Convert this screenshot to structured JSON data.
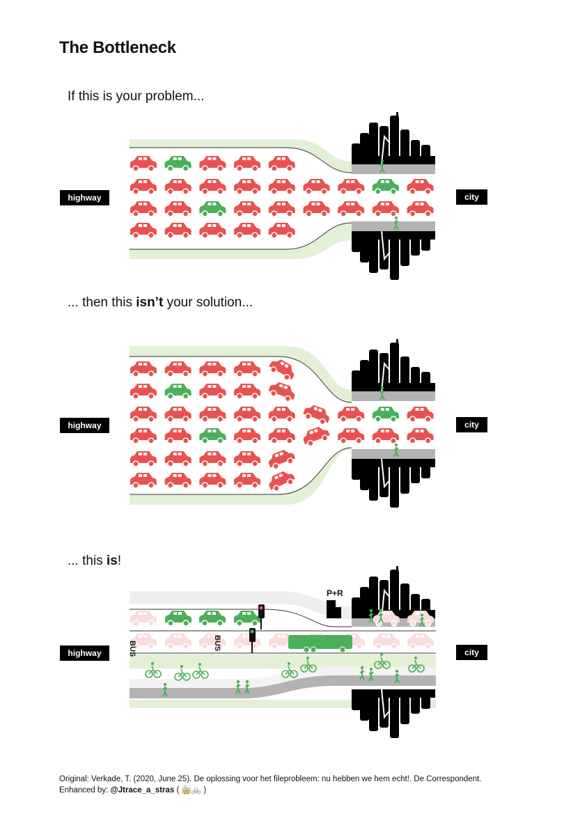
{
  "title": "The Bottleneck",
  "panels": [
    {
      "caption_pre": "If this is your problem...",
      "caption_bold": "",
      "caption_post": "",
      "left_label": "highway",
      "right_label": "city",
      "car_rows": [
        "rgrrr",
        "rrrrrrrgr",
        "rrgrrrrrr",
        "rrrrr"
      ]
    },
    {
      "caption_pre": "... then this ",
      "caption_bold": "isn’t",
      "caption_post": " your solution...",
      "left_label": "highway",
      "right_label": "city",
      "car_rows": [
        "rrrrr",
        "rgrrr",
        "rrrrrrrgr",
        "rrgrrrrrr",
        "rrrrr",
        "rrrrr"
      ]
    },
    {
      "caption_pre": "... this ",
      "caption_bold": "is",
      "caption_post": "!",
      "left_label": "highway",
      "right_label": "city",
      "bus_lane_labels": [
        "BUS",
        "BUS"
      ],
      "park_and_ride": "P+R"
    }
  ],
  "colors": {
    "car_red": "#e8524f",
    "car_green": "#4caf5a",
    "faded_red": "#f9dcdc",
    "road_gray": "#b3b3b3",
    "verge_green": "#e3f0d5",
    "city_black": "#000000"
  },
  "footer": {
    "line1": "Original: Verkade, T. (2020, June 25). De oplossing voor het fileprobleem: nu hebben we hem echt!. De Correspondent.",
    "line2_prefix": "Enhanced by: ",
    "line2_handle": "@Jtrace_a_stras",
    "line2_suffix": " ( 🚋🚲 )"
  }
}
